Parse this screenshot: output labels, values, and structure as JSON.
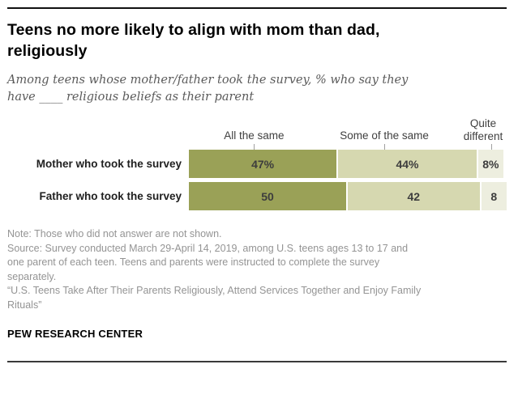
{
  "title": {
    "lines": [
      "Teens no more likely to align with mom than dad,",
      "religiously"
    ]
  },
  "subtitle": {
    "lines": [
      "Among teens whose mother/father took the survey, % who say they",
      "have ____ religious beliefs as their parent"
    ]
  },
  "chart_data": {
    "type": "bar",
    "orientation": "horizontal-stacked",
    "categories": [
      "Mother who took the survey",
      "Father who took the survey"
    ],
    "series": [
      {
        "name": "All the same",
        "values": [
          47,
          50
        ],
        "color": "#9aa157"
      },
      {
        "name": "Some of the same",
        "values": [
          44,
          42
        ],
        "color": "#d6d8b0"
      },
      {
        "name": "Quite different",
        "values": [
          8,
          8
        ],
        "color": "#edeedf"
      }
    ],
    "value_labels": [
      [
        "47%",
        "44%",
        "8%"
      ],
      [
        "50",
        "42",
        "8"
      ]
    ],
    "xlim": [
      0,
      100
    ],
    "legend_position": "top",
    "grid": false,
    "value_label_color": "#3d3d3d"
  },
  "notes": {
    "lines": [
      "Note: Those who did not answer are not shown.",
      "Source: Survey conducted March 29-April 14, 2019, among U.S. teens ages 13 to 17 and",
      "one parent of each teen. Teens and parents were instructed to complete the survey",
      "separately.",
      "“U.S. Teens Take After Their Parents Religiously, Attend Services Together and Enjoy Family",
      "Rituals”"
    ]
  },
  "footer": {
    "brand": "PEW RESEARCH CENTER"
  }
}
